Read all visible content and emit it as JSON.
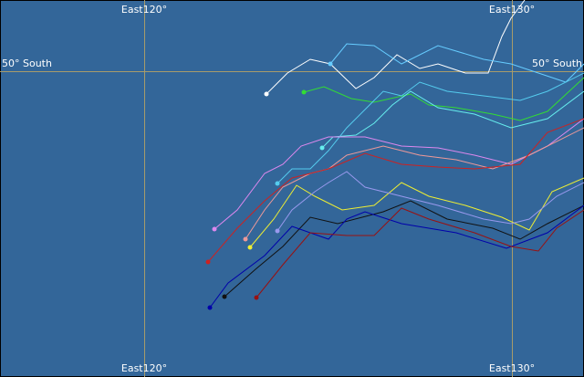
{
  "longitude_labels": {
    "top": [
      "East120°",
      "East130°"
    ],
    "bottom": [
      "East120°",
      "East130°"
    ]
  },
  "latitude_labels": {
    "left": "50° South",
    "right": "50° South"
  }
}
